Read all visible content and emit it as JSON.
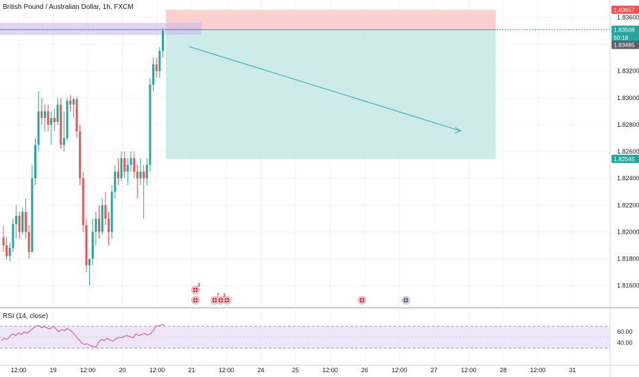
{
  "header": {
    "symbol_title": "British Pound / Australian Dollar, 1h, FXCM"
  },
  "rsi": {
    "title": "RSI (14, close)",
    "ticks": [
      "60.00",
      "40.00"
    ],
    "upper_band": 70,
    "lower_band": 30,
    "values": [
      44,
      48,
      46,
      52,
      56,
      53,
      58,
      55,
      60,
      57,
      62,
      66,
      70,
      71,
      68,
      69,
      67,
      65,
      70,
      66,
      60,
      64,
      62,
      66,
      63,
      58,
      52,
      46,
      40,
      37,
      38,
      35,
      33,
      32,
      41,
      46,
      44,
      48,
      45,
      43,
      47,
      50,
      49,
      52,
      53,
      51,
      49,
      56,
      53,
      55,
      57,
      54,
      56,
      62,
      70,
      71,
      73,
      72
    ],
    "bands_color": "#e9dcf9",
    "line_color": "#c2507a"
  },
  "price_axis": {
    "ticks": [
      "1.83600",
      "1.83400",
      "1.83200",
      "1.83000",
      "1.82800",
      "1.82600",
      "1.82400",
      "1.82200",
      "1.82000",
      "1.81800",
      "1.81600"
    ],
    "ylim": [
      1.8145,
      1.8373
    ],
    "badges": [
      {
        "label": "1.83657",
        "value": 1.83657,
        "color": "#ef5350"
      },
      {
        "label": "1.83508",
        "value": 1.83508,
        "color": "#26a69a"
      },
      {
        "label": "50:18",
        "value": 1.8345,
        "color": "#26a69a"
      },
      {
        "label": "1.83485",
        "value": 1.83395,
        "color": "#5d606b"
      },
      {
        "label": "1.82545",
        "value": 1.82545,
        "color": "#26a69a"
      }
    ]
  },
  "time_axis": {
    "labels": [
      "12:00",
      "19",
      "12:00",
      "20",
      "12:00",
      "21",
      "12:00",
      "24",
      "25",
      "12:00",
      "26",
      "12:00",
      "27",
      "12:00",
      "28",
      "12:00",
      "31"
    ]
  },
  "events": [
    {
      "kind": "flag-gb",
      "sup": "3"
    },
    {
      "kind": "flag-gb",
      "sup": ""
    },
    {
      "kind": "flag-gb",
      "sup": "7"
    },
    {
      "kind": "flag-gb",
      "sup": "3"
    },
    {
      "kind": "flag-gb",
      "sup": ""
    },
    {
      "kind": "flag-gb",
      "sup": ""
    },
    {
      "kind": "flag-au",
      "sup": ""
    }
  ],
  "colors": {
    "up": "#26a69a",
    "down": "#ef5350",
    "stop_zone": "#f9c9c8",
    "target_zone": "#c8e9e6",
    "grid": "#f0f3fa"
  },
  "chart_data": {
    "type": "candlestick",
    "symbol": "GBPAUD",
    "interval": "1h",
    "ohlc": [
      [
        1.8196,
        1.8205,
        1.8185,
        1.819
      ],
      [
        1.819,
        1.8196,
        1.8179,
        1.8182
      ],
      [
        1.8182,
        1.8192,
        1.8178,
        1.8188
      ],
      [
        1.8188,
        1.821,
        1.8185,
        1.8206
      ],
      [
        1.8206,
        1.822,
        1.8195,
        1.8212
      ],
      [
        1.8212,
        1.8215,
        1.8195,
        1.82
      ],
      [
        1.82,
        1.8218,
        1.8198,
        1.8215
      ],
      [
        1.8215,
        1.8225,
        1.8195,
        1.82
      ],
      [
        1.82,
        1.8205,
        1.818,
        1.8185
      ],
      [
        1.8185,
        1.825,
        1.8185,
        1.824
      ],
      [
        1.824,
        1.827,
        1.8235,
        1.8265
      ],
      [
        1.8265,
        1.8305,
        1.826,
        1.829
      ],
      [
        1.829,
        1.83,
        1.828,
        1.8285
      ],
      [
        1.8285,
        1.8295,
        1.8275,
        1.829
      ],
      [
        1.829,
        1.8295,
        1.8275,
        1.828
      ],
      [
        1.828,
        1.829,
        1.8265,
        1.8285
      ],
      [
        1.8285,
        1.8292,
        1.8275,
        1.8282
      ],
      [
        1.8282,
        1.83,
        1.828,
        1.8295
      ],
      [
        1.8295,
        1.83,
        1.8262,
        1.8265
      ],
      [
        1.8265,
        1.829,
        1.826,
        1.827
      ],
      [
        1.827,
        1.83,
        1.8268,
        1.8298
      ],
      [
        1.8298,
        1.8302,
        1.829,
        1.8295
      ],
      [
        1.8295,
        1.83,
        1.8285,
        1.8299
      ],
      [
        1.8299,
        1.8301,
        1.827,
        1.8275
      ],
      [
        1.8275,
        1.828,
        1.8235,
        1.824
      ],
      [
        1.824,
        1.8245,
        1.82,
        1.8205
      ],
      [
        1.8205,
        1.821,
        1.817,
        1.8175
      ],
      [
        1.8175,
        1.818,
        1.816,
        1.818
      ],
      [
        1.818,
        1.821,
        1.8175,
        1.82
      ],
      [
        1.82,
        1.8215,
        1.819,
        1.821
      ],
      [
        1.821,
        1.822,
        1.8195,
        1.82
      ],
      [
        1.82,
        1.8225,
        1.8198,
        1.822
      ],
      [
        1.822,
        1.823,
        1.8205,
        1.821
      ],
      [
        1.821,
        1.8215,
        1.819,
        1.82
      ],
      [
        1.82,
        1.8235,
        1.8195,
        1.823
      ],
      [
        1.823,
        1.825,
        1.8225,
        1.8245
      ],
      [
        1.8245,
        1.8255,
        1.8235,
        1.824
      ],
      [
        1.824,
        1.826,
        1.8238,
        1.8255
      ],
      [
        1.8255,
        1.826,
        1.824,
        1.8245
      ],
      [
        1.8245,
        1.8255,
        1.8235,
        1.825
      ],
      [
        1.825,
        1.826,
        1.8245,
        1.8255
      ],
      [
        1.8255,
        1.826,
        1.824,
        1.8245
      ],
      [
        1.8245,
        1.825,
        1.8225,
        1.824
      ],
      [
        1.824,
        1.8255,
        1.8235,
        1.8245
      ],
      [
        1.8245,
        1.825,
        1.821,
        1.824
      ],
      [
        1.824,
        1.8255,
        1.8235,
        1.825
      ],
      [
        1.825,
        1.8315,
        1.8245,
        1.831
      ],
      [
        1.831,
        1.833,
        1.8305,
        1.8325
      ],
      [
        1.8325,
        1.833,
        1.8315,
        1.832
      ],
      [
        1.832,
        1.8338,
        1.8315,
        1.8335
      ],
      [
        1.8335,
        1.8352,
        1.833,
        1.835
      ]
    ],
    "position": {
      "kind": "short",
      "entry": 1.83508,
      "stop": 1.83657,
      "target": 1.82545
    },
    "ylim": [
      1.8145,
      1.8373
    ]
  }
}
